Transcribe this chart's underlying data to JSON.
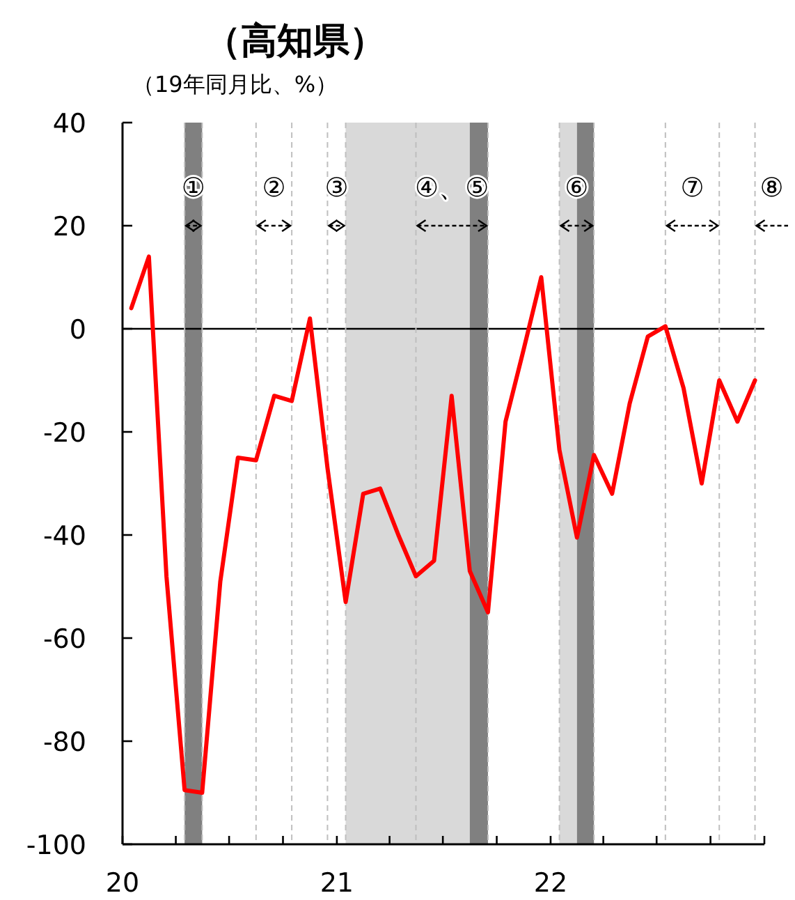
{
  "chart_data": {
    "type": "line",
    "title": "（高知県）",
    "subtitle": "（19年同月比、%）",
    "x": [
      "2020-01-16",
      "2020-02-15",
      "2020-03-16",
      "2020-04-16",
      "2020-05-16",
      "2020-06-16",
      "2020-07-16",
      "2020-08-16",
      "2020-09-16",
      "2020-10-16",
      "2020-11-16",
      "2020-12-16",
      "2021-01-16",
      "2021-02-15",
      "2021-03-16",
      "2021-04-16",
      "2021-05-16",
      "2021-06-16",
      "2021-07-16",
      "2021-08-16",
      "2021-09-16",
      "2021-10-16",
      "2021-11-16",
      "2021-12-16",
      "2022-01-16",
      "2022-02-15",
      "2022-03-16",
      "2022-04-16",
      "2022-05-16",
      "2022-06-16",
      "2022-07-16",
      "2022-08-16",
      "2022-09-16",
      "2022-10-16",
      "2022-11-16",
      "2022-12-16"
    ],
    "series": [
      {
        "color": "#ff0000",
        "values": [
          4,
          14,
          -48,
          -89.5,
          -90,
          -49,
          -25,
          -25.5,
          -13,
          -14,
          2,
          -27,
          -53,
          -32,
          -31,
          -40,
          -48,
          -45,
          -13,
          -47,
          -55,
          -18,
          -4,
          10,
          -23.5,
          -40.5,
          -24.5,
          -32,
          -14.5,
          -1.5,
          0.5,
          -11.5,
          -30,
          -10,
          -18,
          -10
        ]
      }
    ],
    "xlim": [
      "2020-01-01",
      "2023-01-01"
    ],
    "xticks": [
      {
        "value": "2020-01-01",
        "label": "20"
      },
      {
        "value": "2020-04-01",
        "label": null
      },
      {
        "value": "2020-07-01",
        "label": null
      },
      {
        "value": "2020-10-01",
        "label": null
      },
      {
        "value": "2021-01-01",
        "label": "21"
      },
      {
        "value": "2021-04-01",
        "label": null
      },
      {
        "value": "2021-07-01",
        "label": null
      },
      {
        "value": "2021-10-01",
        "label": null
      },
      {
        "value": "2022-01-01",
        "label": "22"
      },
      {
        "value": "2022-04-01",
        "label": null
      },
      {
        "value": "2022-07-01",
        "label": null
      },
      {
        "value": "2022-10-01",
        "label": null
      },
      {
        "value": "2023-01-01",
        "label": null
      }
    ],
    "ylim": [
      -100,
      40
    ],
    "yticks": [
      -100,
      -80,
      -60,
      -40,
      -20,
      0,
      20,
      40
    ],
    "bands": [
      {
        "axis": "x",
        "from": "2020-04-16",
        "to": "2020-05-16",
        "color": "#808080"
      },
      {
        "axis": "x",
        "from": "2021-01-16",
        "to": "2021-08-16",
        "color": "#d9d9d9"
      },
      {
        "axis": "x",
        "from": "2021-08-16",
        "to": "2021-09-16",
        "color": "#808080"
      },
      {
        "axis": "x",
        "from": "2022-01-16",
        "to": "2022-02-15",
        "color": "#d9d9d9"
      },
      {
        "axis": "x",
        "from": "2022-02-15",
        "to": "2022-03-16",
        "color": "#808080"
      }
    ],
    "ref_lines": [
      {
        "axis": "y",
        "value": 0,
        "color": "#000000",
        "line_style": "solid"
      },
      {
        "axis": "x",
        "value": "2020-04-16",
        "color": "#bfbfbf",
        "line_style": "dashed",
        "label": "①"
      },
      {
        "axis": "x",
        "value": "2020-05-16",
        "color": "#bfbfbf",
        "line_style": "dashed"
      },
      {
        "axis": "x",
        "value": "2020-08-16",
        "color": "#bfbfbf",
        "line_style": "dashed",
        "label": "②"
      },
      {
        "axis": "x",
        "value": "2020-10-16",
        "color": "#bfbfbf",
        "line_style": "dashed"
      },
      {
        "axis": "x",
        "value": "2020-12-16",
        "color": "#bfbfbf",
        "line_style": "dashed",
        "label": "③"
      },
      {
        "axis": "x",
        "value": "2021-01-16",
        "color": "#bfbfbf",
        "line_style": "dashed"
      },
      {
        "axis": "x",
        "value": "2021-05-16",
        "color": "#bfbfbf",
        "line_style": "dashed",
        "label": "④、⑤"
      },
      {
        "axis": "x",
        "value": "2021-09-16",
        "color": "#bfbfbf",
        "line_style": "dashed"
      },
      {
        "axis": "x",
        "value": "2022-01-16",
        "color": "#bfbfbf",
        "line_style": "dashed",
        "label": "⑥"
      },
      {
        "axis": "x",
        "value": "2022-03-16",
        "color": "#bfbfbf",
        "line_style": "dashed"
      },
      {
        "axis": "x",
        "value": "2022-07-16",
        "color": "#bfbfbf",
        "line_style": "dashed",
        "label": "⑦"
      },
      {
        "axis": "x",
        "value": "2022-10-16",
        "color": "#bfbfbf",
        "line_style": "dashed"
      },
      {
        "axis": "x",
        "value": "2022-12-16",
        "color": "#bfbfbf",
        "line_style": "dashed",
        "label": "⑧"
      }
    ],
    "grid": false,
    "marker": "none",
    "line_style": "solid"
  }
}
